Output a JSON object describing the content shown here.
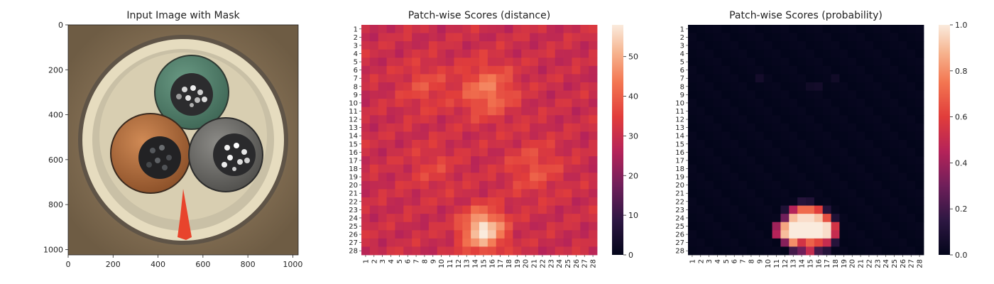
{
  "chart_data": [
    {
      "type": "image",
      "title": "Input Image with Mask",
      "xlabel": "",
      "ylabel": "",
      "xlim": [
        0,
        1024
      ],
      "ylim": [
        1024,
        0
      ],
      "xticks": [
        "0",
        "200",
        "400",
        "600",
        "800",
        "1000"
      ],
      "yticks": [
        "0",
        "200",
        "400",
        "600",
        "800",
        "1000"
      ],
      "overlay": "red defect mask"
    },
    {
      "type": "heatmap",
      "title": "Patch-wise Scores (distance)",
      "rows": [
        "1",
        "2",
        "3",
        "4",
        "5",
        "6",
        "7",
        "8",
        "9",
        "10",
        "11",
        "12",
        "13",
        "14",
        "15",
        "16",
        "17",
        "18",
        "19",
        "20",
        "21",
        "22",
        "23",
        "24",
        "25",
        "26",
        "27",
        "28"
      ],
      "cols": [
        "1",
        "2",
        "3",
        "4",
        "5",
        "6",
        "7",
        "8",
        "9",
        "10",
        "11",
        "12",
        "13",
        "14",
        "15",
        "16",
        "17",
        "18",
        "19",
        "20",
        "21",
        "22",
        "23",
        "24",
        "25",
        "26",
        "27",
        "28"
      ],
      "colorbar": {
        "min": 0,
        "max": 58,
        "ticks": [
          "0",
          "10",
          "20",
          "30",
          "40",
          "50"
        ]
      },
      "base": 30,
      "blobs": [
        {
          "center": [
            8.5,
            15.5
          ],
          "peak": 44,
          "spread": 2.2
        },
        {
          "center": [
            8,
            8
          ],
          "peak": 37,
          "spread": 2.0
        },
        {
          "center": [
            18,
            21
          ],
          "peak": 38,
          "spread": 2.2
        },
        {
          "center": [
            18,
            9
          ],
          "peak": 35,
          "spread": 2.0
        },
        {
          "center": [
            25.5,
            15
          ],
          "peak": 58,
          "spread": 1.7
        }
      ]
    },
    {
      "type": "heatmap",
      "title": "Patch-wise Scores (probability)",
      "rows": [
        "1",
        "2",
        "3",
        "4",
        "5",
        "6",
        "7",
        "8",
        "9",
        "10",
        "11",
        "12",
        "13",
        "14",
        "15",
        "16",
        "17",
        "18",
        "19",
        "20",
        "21",
        "22",
        "23",
        "24",
        "25",
        "26",
        "27",
        "28"
      ],
      "cols": [
        "1",
        "2",
        "3",
        "4",
        "5",
        "6",
        "7",
        "8",
        "9",
        "10",
        "11",
        "12",
        "13",
        "14",
        "15",
        "16",
        "17",
        "18",
        "19",
        "20",
        "21",
        "22",
        "23",
        "24",
        "25",
        "26",
        "27",
        "28"
      ],
      "colorbar": {
        "min": 0.0,
        "max": 1.0,
        "ticks": [
          "0.0",
          "0.2",
          "0.4",
          "0.6",
          "0.8",
          "1.0"
        ]
      },
      "cells": [
        {
          "row": 22,
          "col": 14,
          "value": 0.12
        },
        {
          "row": 22,
          "col": 15,
          "value": 0.1
        },
        {
          "row": 23,
          "col": 12,
          "value": 0.1
        },
        {
          "row": 23,
          "col": 13,
          "value": 0.45
        },
        {
          "row": 23,
          "col": 14,
          "value": 0.72
        },
        {
          "row": 23,
          "col": 15,
          "value": 0.72
        },
        {
          "row": 23,
          "col": 16,
          "value": 0.6
        },
        {
          "row": 23,
          "col": 17,
          "value": 0.12
        },
        {
          "row": 24,
          "col": 12,
          "value": 0.3
        },
        {
          "row": 24,
          "col": 13,
          "value": 0.9
        },
        {
          "row": 24,
          "col": 14,
          "value": 0.97
        },
        {
          "row": 24,
          "col": 15,
          "value": 0.97
        },
        {
          "row": 24,
          "col": 16,
          "value": 0.92
        },
        {
          "row": 24,
          "col": 17,
          "value": 0.65
        },
        {
          "row": 24,
          "col": 18,
          "value": 0.1
        },
        {
          "row": 25,
          "col": 11,
          "value": 0.4
        },
        {
          "row": 25,
          "col": 12,
          "value": 0.85
        },
        {
          "row": 25,
          "col": 13,
          "value": 1.0
        },
        {
          "row": 25,
          "col": 14,
          "value": 1.0
        },
        {
          "row": 25,
          "col": 15,
          "value": 1.0
        },
        {
          "row": 25,
          "col": 16,
          "value": 1.0
        },
        {
          "row": 25,
          "col": 17,
          "value": 0.97
        },
        {
          "row": 25,
          "col": 18,
          "value": 0.55
        },
        {
          "row": 26,
          "col": 11,
          "value": 0.45
        },
        {
          "row": 26,
          "col": 12,
          "value": 0.9
        },
        {
          "row": 26,
          "col": 13,
          "value": 1.0
        },
        {
          "row": 26,
          "col": 14,
          "value": 1.0
        },
        {
          "row": 26,
          "col": 15,
          "value": 1.0
        },
        {
          "row": 26,
          "col": 16,
          "value": 1.0
        },
        {
          "row": 26,
          "col": 17,
          "value": 0.97
        },
        {
          "row": 26,
          "col": 18,
          "value": 0.5
        },
        {
          "row": 27,
          "col": 12,
          "value": 0.35
        },
        {
          "row": 27,
          "col": 13,
          "value": 0.8
        },
        {
          "row": 27,
          "col": 14,
          "value": 0.55
        },
        {
          "row": 27,
          "col": 15,
          "value": 0.7
        },
        {
          "row": 27,
          "col": 16,
          "value": 0.62
        },
        {
          "row": 27,
          "col": 17,
          "value": 0.5
        },
        {
          "row": 27,
          "col": 18,
          "value": 0.12
        },
        {
          "row": 28,
          "col": 13,
          "value": 0.2
        },
        {
          "row": 28,
          "col": 14,
          "value": 0.3
        },
        {
          "row": 28,
          "col": 15,
          "value": 0.5
        },
        {
          "row": 28,
          "col": 16,
          "value": 0.2
        },
        {
          "row": 28,
          "col": 17,
          "value": 0.12
        },
        {
          "row": 7,
          "col": 9,
          "value": 0.06
        },
        {
          "row": 8,
          "col": 15,
          "value": 0.05
        },
        {
          "row": 8,
          "col": 16,
          "value": 0.06
        },
        {
          "row": 7,
          "col": 18,
          "value": 0.05
        }
      ]
    }
  ]
}
